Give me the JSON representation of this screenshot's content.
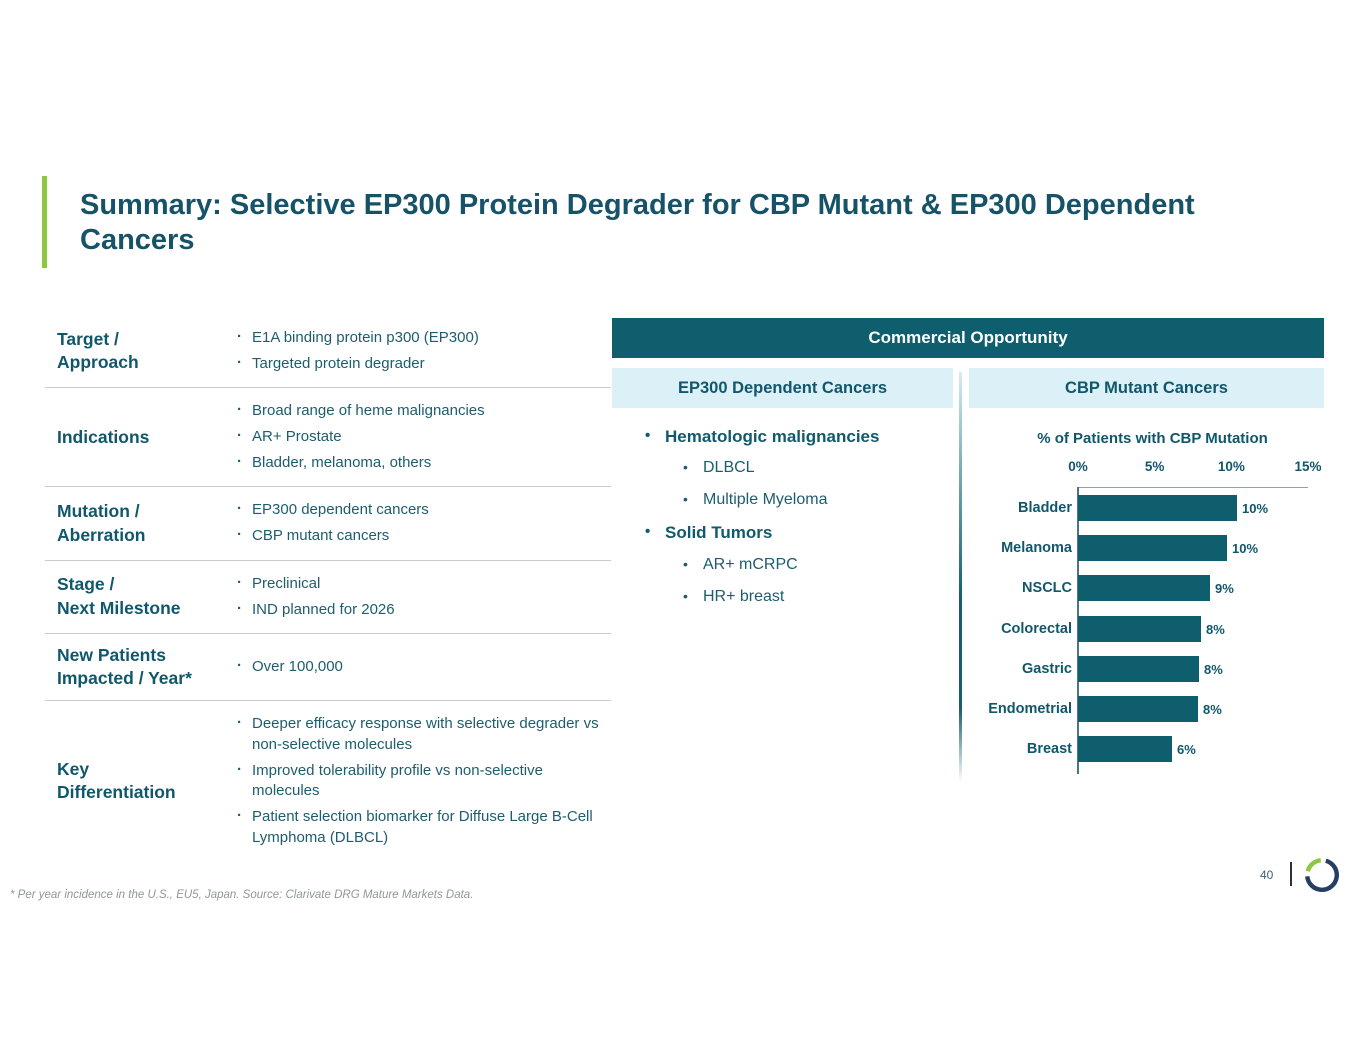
{
  "title": {
    "text": "Summary: Selective EP300 Protein Degrader for CBP Mutant & EP300 Dependent Cancers"
  },
  "profile_table": {
    "rows": [
      {
        "label": "Target /\nApproach",
        "bullets": [
          "E1A binding protein p300 (EP300)",
          "Targeted protein degrader"
        ]
      },
      {
        "label": "Indications",
        "bullets": [
          "Broad range of heme malignancies",
          "AR+ Prostate",
          "Bladder, melanoma, others"
        ]
      },
      {
        "label": "Mutation /\nAberration",
        "bullets": [
          "EP300 dependent cancers",
          "CBP mutant cancers"
        ]
      },
      {
        "label": "Stage /\nNext Milestone",
        "bullets": [
          "Preclinical",
          "IND planned for 2026"
        ]
      },
      {
        "label": "New Patients\nImpacted / Year*",
        "bullets": [
          "Over 100,000"
        ]
      },
      {
        "label": "Key\nDifferentiation",
        "bullets": [
          "Deeper efficacy response with selective degrader vs non-selective molecules",
          "Improved tolerability profile vs non-selective molecules",
          "Patient selection biomarker for Diffuse Large B-Cell Lymphoma (DLBCL)"
        ]
      }
    ]
  },
  "commercial": {
    "header": "Commercial Opportunity",
    "ep300": {
      "header": "EP300 Dependent Cancers",
      "groups": [
        {
          "label": "Hematologic malignancies",
          "items": [
            "DLBCL",
            "Multiple Myeloma"
          ]
        },
        {
          "label": "Solid Tumors",
          "items": [
            "AR+ mCRPC",
            "HR+ breast"
          ]
        }
      ]
    },
    "cbp": {
      "header": "CBP Mutant Cancers"
    }
  },
  "chart_data": {
    "type": "bar",
    "orientation": "horizontal",
    "title": "% of Patients with CBP Mutation",
    "categories": [
      "Bladder",
      "Melanoma",
      "NSCLC",
      "Colorectal",
      "Gastric",
      "Endometrial",
      "Breast"
    ],
    "values": [
      "10%",
      "10%",
      "9%",
      "8%",
      "8%",
      "8%",
      "6%"
    ],
    "bar_values": [
      10.4,
      9.7,
      8.6,
      8.0,
      7.9,
      7.8,
      6.1
    ],
    "xlim": [
      0,
      15
    ],
    "x_tick_values": [
      0,
      5,
      10,
      15
    ],
    "x_tick_labels": [
      "0%",
      "5%",
      "10%",
      "15%"
    ],
    "axis_position": "top",
    "bar_color": "#0e5e6d",
    "grid": false,
    "legend": false
  },
  "footer": {
    "note": "* Per year incidence in the U.S., EU5, Japan. Source: Clarivate DRG Mature Markets Data.",
    "page": "40"
  },
  "colors": {
    "accent_green": "#8dc63f",
    "teal_dark": "#0e5e6d",
    "light_blue_band": "#dcf0f8",
    "heading_text": "#11576c",
    "body_text": "#1d5d6e",
    "footnote_gray": "#8f979c",
    "logo_navy": "#243f60"
  }
}
